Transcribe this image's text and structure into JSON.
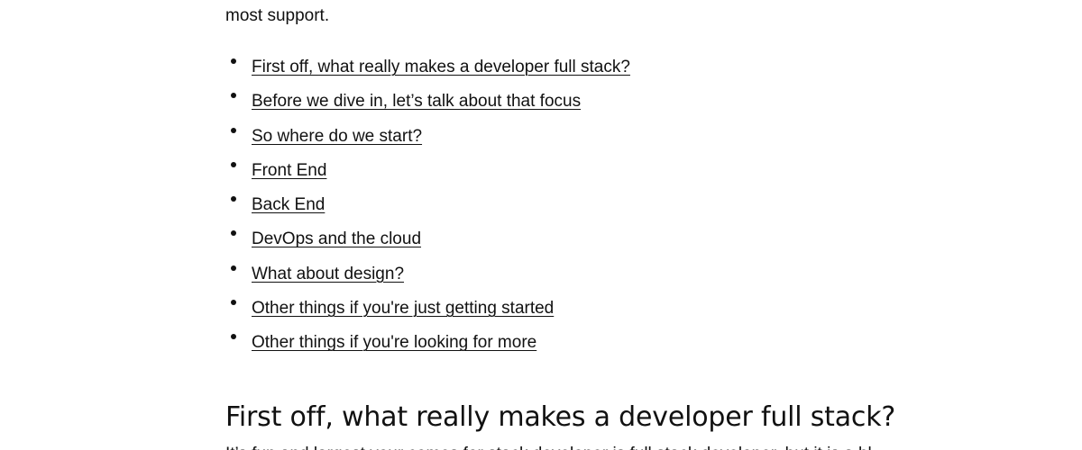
{
  "intro": {
    "tail_text": "most support."
  },
  "toc": {
    "items": [
      {
        "label": "First off, what really makes a developer full stack?"
      },
      {
        "label": "Before we dive in, let’s talk about that focus"
      },
      {
        "label": "So where do we start?"
      },
      {
        "label": "Front End"
      },
      {
        "label": "Back End"
      },
      {
        "label": "DevOps and the cloud"
      },
      {
        "label": "What about design?"
      },
      {
        "label": "Other things if you're just getting started"
      },
      {
        "label": "Other things if you're looking for more"
      }
    ]
  },
  "section": {
    "heading": "First off, what really makes a developer full stack?",
    "first_line_visible": "It’s fun and largest your comes for stack developer is full stack developer, but it is a bl"
  }
}
